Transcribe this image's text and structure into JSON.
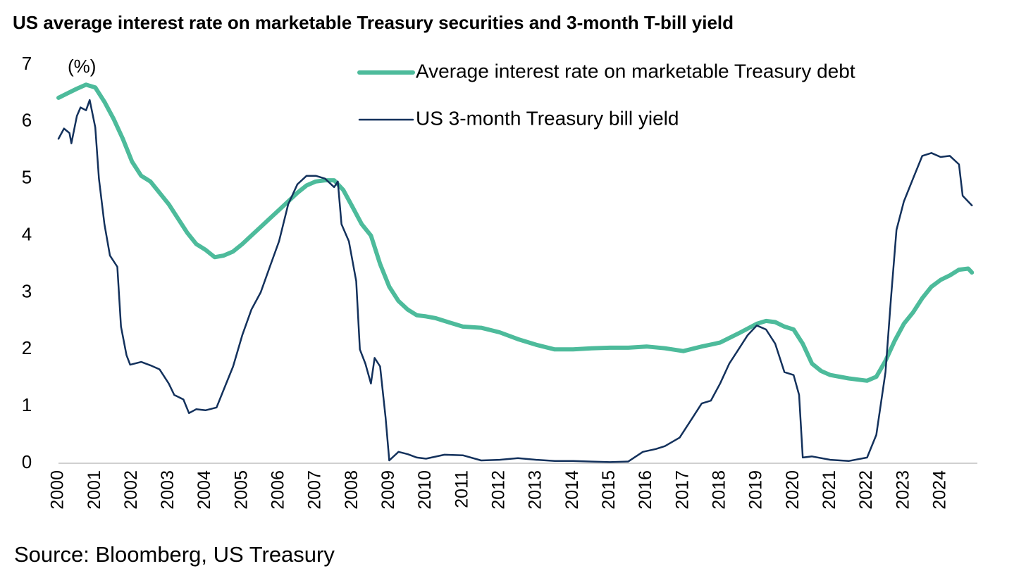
{
  "chart_data": {
    "type": "line",
    "title": "US average interest rate on marketable Treasury securities and 3-month T-bill yield",
    "ylabel": "(%)",
    "source": "Source: Bloomberg, US Treasury",
    "xlim": [
      2000,
      2025
    ],
    "xticks": [
      2000,
      2001,
      2002,
      2003,
      2004,
      2005,
      2006,
      2007,
      2008,
      2009,
      2010,
      2011,
      2012,
      2013,
      2014,
      2015,
      2016,
      2017,
      2018,
      2019,
      2020,
      2021,
      2022,
      2023,
      2024
    ],
    "ylim": [
      0,
      7
    ],
    "yticks": [
      0,
      1,
      2,
      3,
      4,
      5,
      6,
      7
    ],
    "grid": false,
    "legend": "upper right",
    "series": [
      {
        "name": "Average interest rate on marketable Treasury debt",
        "color": "#4dbb9b",
        "width": 6,
        "x": [
          2000,
          2000.25,
          2000.5,
          2000.75,
          2001,
          2001.25,
          2001.5,
          2001.75,
          2002,
          2002.25,
          2002.5,
          2002.75,
          2003,
          2003.25,
          2003.5,
          2003.75,
          2004,
          2004.25,
          2004.5,
          2004.75,
          2005,
          2005.25,
          2005.5,
          2005.75,
          2006,
          2006.25,
          2006.5,
          2006.75,
          2007,
          2007.25,
          2007.5,
          2007.75,
          2008,
          2008.25,
          2008.5,
          2008.75,
          2009,
          2009.25,
          2009.5,
          2009.75,
          2010,
          2010.25,
          2010.5,
          2010.75,
          2011,
          2011.5,
          2012,
          2012.5,
          2013,
          2013.5,
          2014,
          2014.5,
          2015,
          2015.5,
          2016,
          2016.5,
          2017,
          2017.5,
          2018,
          2018.5,
          2019,
          2019.25,
          2019.5,
          2019.75,
          2020,
          2020.25,
          2020.5,
          2020.75,
          2021,
          2021.5,
          2022,
          2022.25,
          2022.5,
          2022.75,
          2023,
          2023.25,
          2023.5,
          2023.75,
          2024,
          2024.25,
          2024.5,
          2024.75,
          2024.85
        ],
        "values": [
          6.42,
          6.5,
          6.58,
          6.65,
          6.6,
          6.35,
          6.05,
          5.7,
          5.3,
          5.05,
          4.95,
          4.75,
          4.55,
          4.3,
          4.05,
          3.85,
          3.75,
          3.62,
          3.65,
          3.72,
          3.85,
          4.0,
          4.15,
          4.3,
          4.45,
          4.6,
          4.75,
          4.88,
          4.95,
          4.97,
          4.97,
          4.8,
          4.5,
          4.2,
          4.0,
          3.5,
          3.1,
          2.85,
          2.7,
          2.6,
          2.58,
          2.55,
          2.5,
          2.45,
          2.4,
          2.38,
          2.3,
          2.18,
          2.08,
          2.0,
          2.0,
          2.02,
          2.03,
          2.03,
          2.05,
          2.02,
          1.97,
          2.05,
          2.12,
          2.28,
          2.45,
          2.5,
          2.48,
          2.4,
          2.35,
          2.1,
          1.75,
          1.62,
          1.55,
          1.49,
          1.45,
          1.52,
          1.8,
          2.15,
          2.45,
          2.65,
          2.9,
          3.1,
          3.22,
          3.3,
          3.4,
          3.42,
          3.35
        ]
      },
      {
        "name": "US 3-month Treasury bill yield",
        "color": "#13315c",
        "width": 2.5,
        "x": [
          2000,
          2000.15,
          2000.3,
          2000.35,
          2000.5,
          2000.6,
          2000.75,
          2000.85,
          2001,
          2001.1,
          2001.25,
          2001.4,
          2001.6,
          2001.7,
          2001.85,
          2001.95,
          2002.25,
          2002.5,
          2002.75,
          2003,
          2003.15,
          2003.4,
          2003.55,
          2003.75,
          2004,
          2004.3,
          2004.5,
          2004.75,
          2005,
          2005.25,
          2005.5,
          2005.75,
          2006,
          2006.25,
          2006.5,
          2006.75,
          2007,
          2007.25,
          2007.5,
          2007.6,
          2007.7,
          2007.9,
          2008.1,
          2008.2,
          2008.35,
          2008.5,
          2008.6,
          2008.75,
          2008.9,
          2009,
          2009.25,
          2009.5,
          2009.75,
          2010,
          2010.5,
          2011,
          2011.5,
          2012,
          2012.5,
          2013,
          2013.5,
          2014,
          2014.5,
          2015,
          2015.5,
          2015.9,
          2016.25,
          2016.5,
          2016.9,
          2017.25,
          2017.5,
          2017.75,
          2018,
          2018.25,
          2018.5,
          2018.75,
          2019,
          2019.25,
          2019.5,
          2019.75,
          2020,
          2020.15,
          2020.25,
          2020.5,
          2021,
          2021.5,
          2022,
          2022.25,
          2022.5,
          2022.65,
          2022.8,
          2023,
          2023.25,
          2023.5,
          2023.75,
          2024,
          2024.25,
          2024.5,
          2024.6,
          2024.85
        ],
        "values": [
          5.7,
          5.88,
          5.8,
          5.62,
          6.1,
          6.25,
          6.2,
          6.38,
          5.9,
          5.0,
          4.2,
          3.65,
          3.45,
          2.4,
          1.9,
          1.73,
          1.78,
          1.72,
          1.65,
          1.4,
          1.2,
          1.12,
          0.88,
          0.95,
          0.93,
          0.98,
          1.3,
          1.7,
          2.25,
          2.7,
          3.0,
          3.45,
          3.9,
          4.55,
          4.9,
          5.05,
          5.05,
          5.0,
          4.85,
          4.95,
          4.2,
          3.9,
          3.2,
          2.0,
          1.75,
          1.4,
          1.85,
          1.7,
          0.8,
          0.05,
          0.2,
          0.16,
          0.1,
          0.08,
          0.15,
          0.14,
          0.05,
          0.06,
          0.09,
          0.06,
          0.04,
          0.04,
          0.03,
          0.02,
          0.03,
          0.2,
          0.25,
          0.3,
          0.45,
          0.8,
          1.05,
          1.1,
          1.4,
          1.75,
          2.0,
          2.25,
          2.42,
          2.35,
          2.1,
          1.6,
          1.55,
          1.2,
          0.1,
          0.12,
          0.06,
          0.04,
          0.1,
          0.5,
          1.6,
          2.9,
          4.1,
          4.6,
          5.0,
          5.4,
          5.45,
          5.38,
          5.4,
          5.25,
          4.7,
          4.53
        ]
      }
    ]
  }
}
